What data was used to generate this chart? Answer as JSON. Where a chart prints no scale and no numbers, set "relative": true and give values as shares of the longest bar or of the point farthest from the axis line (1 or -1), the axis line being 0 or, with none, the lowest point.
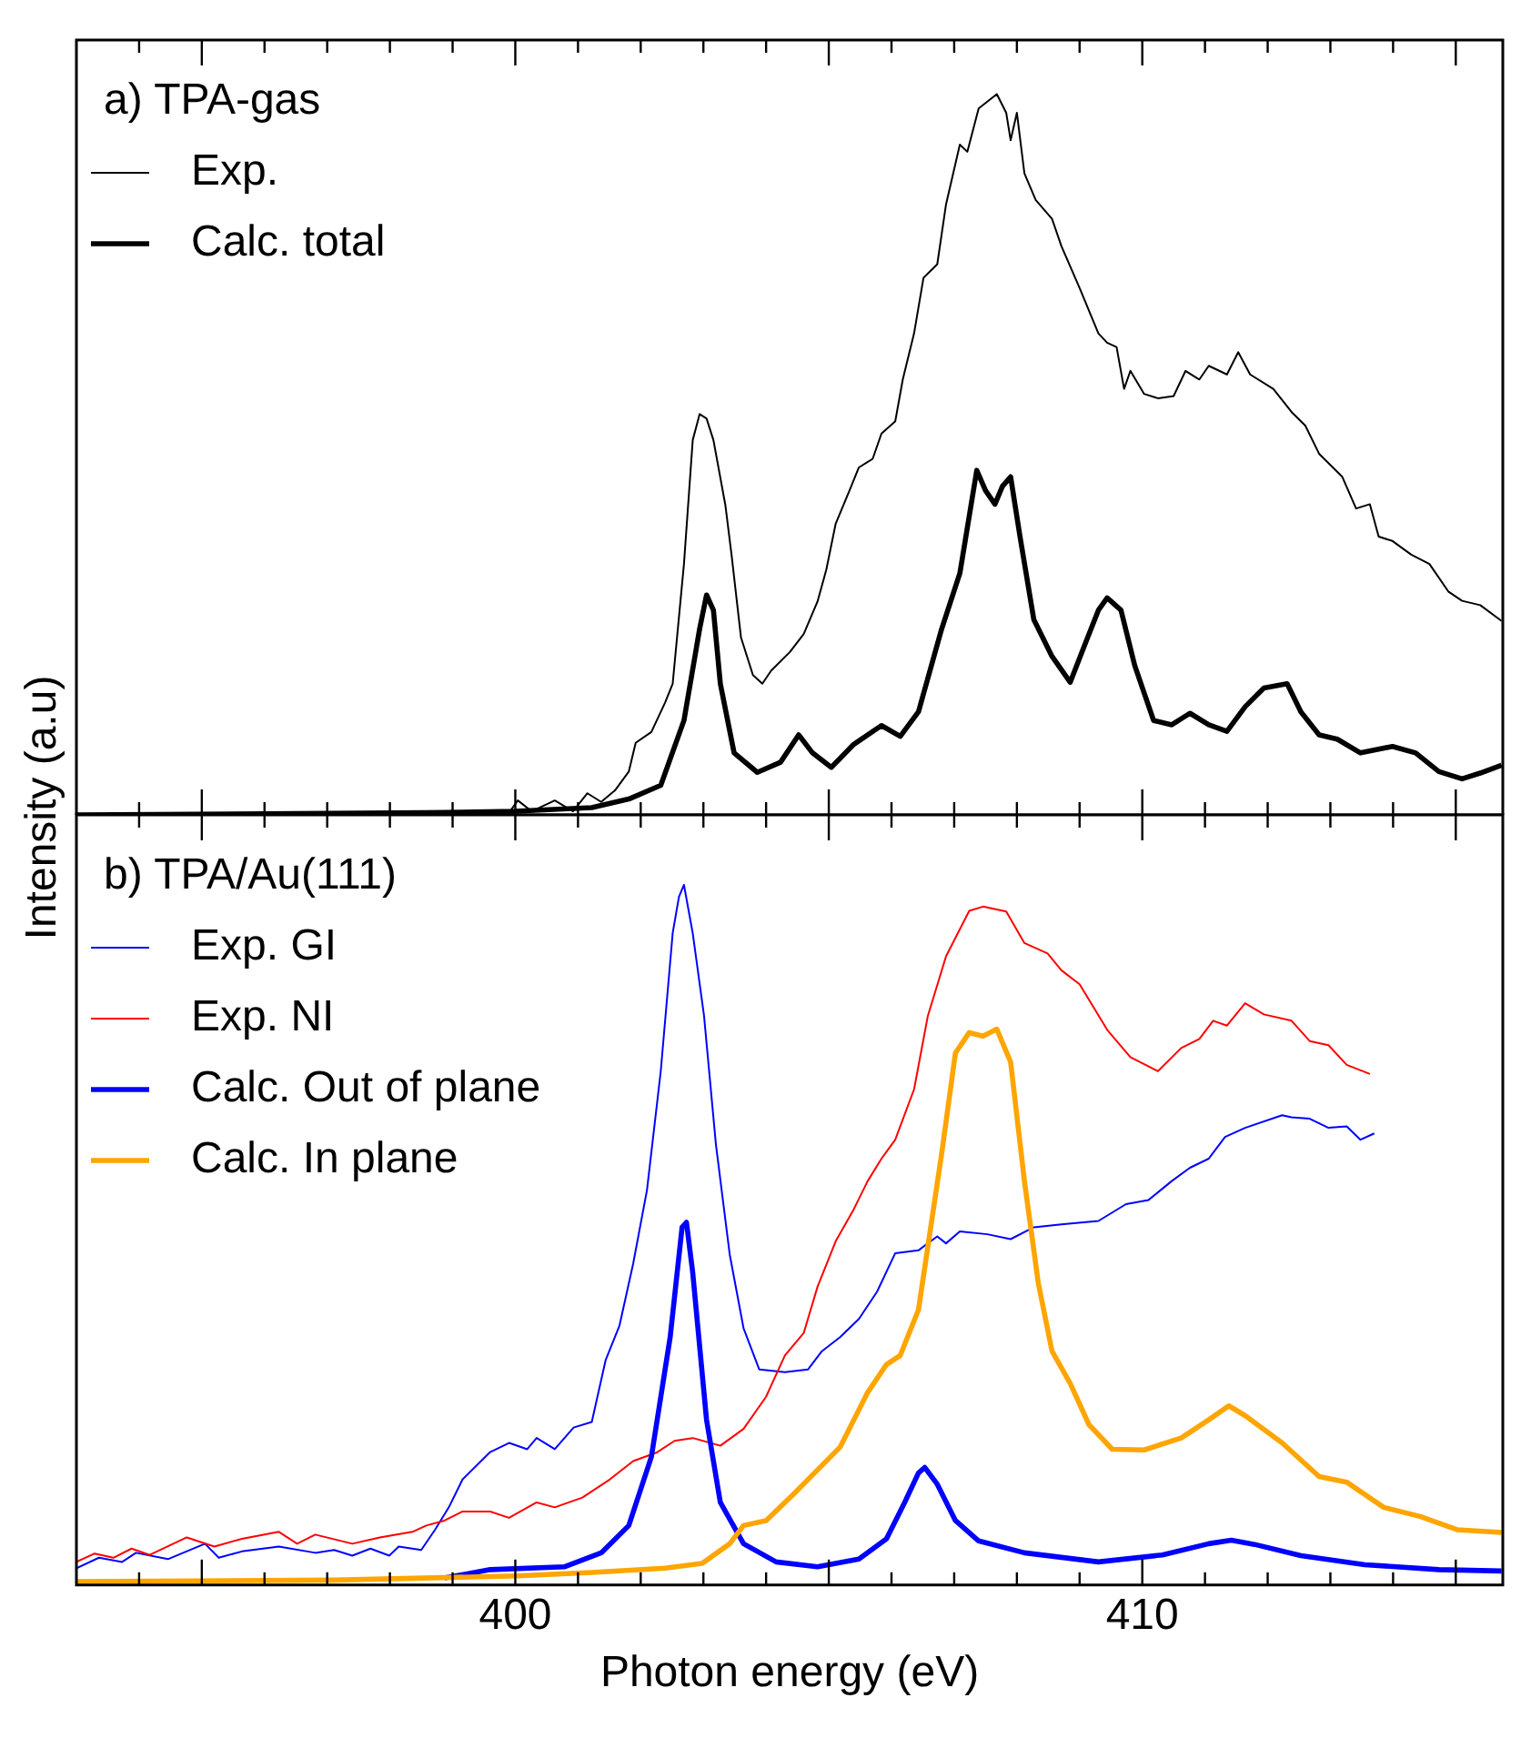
{
  "chart_data": [
    {
      "type": "line",
      "title": "a) TPA-gas",
      "relative": true,
      "legend": "top left",
      "tick_labels": false,
      "xlim": [
        393,
        415.75
      ],
      "xticks": [
        {
          "value": 394,
          "label": null
        },
        {
          "value": 395,
          "label": null
        },
        {
          "value": 396,
          "label": null
        },
        {
          "value": 397,
          "label": null
        },
        {
          "value": 398,
          "label": null
        },
        {
          "value": 399,
          "label": null
        },
        {
          "value": 400,
          "label": null
        },
        {
          "value": 401,
          "label": null
        },
        {
          "value": 402,
          "label": null
        },
        {
          "value": 403,
          "label": null
        },
        {
          "value": 404,
          "label": null
        },
        {
          "value": 405,
          "label": null
        },
        {
          "value": 406,
          "label": null
        },
        {
          "value": 407,
          "label": null
        },
        {
          "value": 408,
          "label": null
        },
        {
          "value": 409,
          "label": null
        },
        {
          "value": 410,
          "label": null
        },
        {
          "value": 411,
          "label": null
        },
        {
          "value": 412,
          "label": null
        },
        {
          "value": 413,
          "label": null
        },
        {
          "value": 414,
          "label": null
        },
        {
          "value": 415,
          "label": null
        }
      ],
      "series": [
        {
          "name": "Exp.",
          "color": "#000000",
          "x": [
            393.0,
            399.9,
            400.04,
            400.26,
            400.63,
            400.92,
            401.15,
            401.37,
            401.59,
            401.81,
            401.92,
            402.17,
            402.39,
            402.51,
            402.69,
            402.83,
            402.94,
            403.05,
            403.16,
            403.35,
            403.45,
            403.6,
            403.79,
            403.94,
            404.08,
            404.38,
            404.6,
            404.82,
            404.96,
            405.11,
            405.33,
            405.48,
            405.7,
            405.84,
            406.06,
            406.18,
            406.36,
            406.51,
            406.73,
            406.87,
            407.09,
            407.21,
            407.39,
            407.68,
            407.83,
            407.9,
            408.0,
            408.12,
            408.3,
            408.56,
            408.71,
            409.0,
            409.3,
            409.44,
            409.59,
            409.71,
            409.81,
            410.03,
            410.25,
            410.5,
            410.69,
            410.91,
            411.06,
            411.35,
            411.53,
            411.72,
            412.09,
            412.38,
            412.6,
            412.82,
            413.19,
            413.41,
            413.63,
            413.77,
            413.99,
            414.29,
            414.58,
            414.88,
            415.1,
            415.39,
            415.73
          ],
          "values": [
            0.0,
            0.003,
            0.02,
            0.005,
            0.02,
            0.005,
            0.03,
            0.018,
            0.034,
            0.06,
            0.1,
            0.115,
            0.156,
            0.182,
            0.348,
            0.52,
            0.556,
            0.55,
            0.52,
            0.43,
            0.36,
            0.246,
            0.194,
            0.182,
            0.2,
            0.226,
            0.251,
            0.296,
            0.34,
            0.404,
            0.45,
            0.482,
            0.494,
            0.529,
            0.546,
            0.604,
            0.668,
            0.745,
            0.764,
            0.847,
            0.93,
            0.92,
            0.98,
            1.0,
            0.974,
            0.936,
            0.974,
            0.89,
            0.853,
            0.827,
            0.789,
            0.731,
            0.668,
            0.655,
            0.649,
            0.591,
            0.616,
            0.584,
            0.578,
            0.581,
            0.616,
            0.604,
            0.623,
            0.611,
            0.642,
            0.611,
            0.591,
            0.559,
            0.54,
            0.501,
            0.469,
            0.425,
            0.431,
            0.386,
            0.38,
            0.361,
            0.348,
            0.31,
            0.297,
            0.291,
            0.269
          ]
        },
        {
          "name": "Calc. total",
          "color": "#000000",
          "x": [
            393.0,
            398.58,
            400.0,
            401.22,
            401.81,
            402.32,
            402.69,
            402.94,
            403.05,
            403.16,
            403.27,
            403.49,
            403.86,
            404.23,
            404.52,
            404.74,
            405.04,
            405.4,
            405.84,
            406.14,
            406.43,
            406.8,
            407.09,
            407.36,
            407.5,
            407.65,
            407.77,
            407.9,
            408.05,
            408.27,
            408.56,
            408.85,
            409.07,
            409.3,
            409.44,
            409.66,
            409.88,
            410.18,
            410.47,
            410.76,
            411.06,
            411.35,
            411.64,
            411.94,
            412.31,
            412.53,
            412.82,
            413.11,
            413.48,
            413.99,
            414.36,
            414.73,
            415.1,
            415.39,
            415.73
          ],
          "values": [
            0.0,
            0.003,
            0.005,
            0.01,
            0.022,
            0.041,
            0.131,
            0.258,
            0.305,
            0.284,
            0.182,
            0.086,
            0.059,
            0.073,
            0.111,
            0.086,
            0.066,
            0.098,
            0.124,
            0.109,
            0.143,
            0.258,
            0.335,
            0.478,
            0.45,
            0.431,
            0.456,
            0.469,
            0.386,
            0.271,
            0.22,
            0.184,
            0.233,
            0.284,
            0.301,
            0.284,
            0.207,
            0.131,
            0.125,
            0.141,
            0.125,
            0.116,
            0.15,
            0.176,
            0.182,
            0.143,
            0.111,
            0.105,
            0.086,
            0.095,
            0.086,
            0.06,
            0.05,
            0.058,
            0.069
          ]
        }
      ]
    },
    {
      "type": "line",
      "title": "b) TPA/Au(111)",
      "relative": true,
      "legend": "top left",
      "tick_labels": "x",
      "xlabel": "Photon energy (eV)",
      "ylabel": "Intensity (a.u)",
      "xlim": [
        393,
        415.75
      ],
      "xticks": [
        {
          "value": 394,
          "label": null
        },
        {
          "value": 395,
          "label": null
        },
        {
          "value": 396,
          "label": null
        },
        {
          "value": 397,
          "label": null
        },
        {
          "value": 398,
          "label": null
        },
        {
          "value": 399,
          "label": null
        },
        400,
        {
          "value": 401,
          "label": null
        },
        {
          "value": 402,
          "label": null
        },
        {
          "value": 403,
          "label": null
        },
        {
          "value": 404,
          "label": null
        },
        {
          "value": 405,
          "label": null
        },
        {
          "value": 406,
          "label": null
        },
        {
          "value": 407,
          "label": null
        },
        {
          "value": 408,
          "label": null
        },
        {
          "value": 409,
          "label": null
        },
        410,
        {
          "value": 411,
          "label": null
        },
        {
          "value": 412,
          "label": null
        },
        {
          "value": 413,
          "label": null
        },
        {
          "value": 414,
          "label": null
        },
        {
          "value": 415,
          "label": null
        }
      ],
      "series": [
        {
          "name": "Exp. GI",
          "color": "#0000ff",
          "x": [
            393.0,
            393.36,
            393.73,
            393.95,
            394.46,
            395.05,
            395.27,
            395.64,
            396.23,
            396.81,
            397.11,
            397.4,
            397.69,
            397.99,
            398.14,
            398.5,
            398.72,
            398.94,
            399.16,
            399.6,
            399.9,
            400.19,
            400.34,
            400.63,
            400.93,
            401.22,
            401.44,
            401.66,
            401.88,
            402.1,
            402.32,
            402.51,
            402.61,
            402.69,
            402.83,
            403.01,
            403.2,
            403.42,
            403.64,
            403.89,
            404.3,
            404.67,
            404.89,
            405.18,
            405.48,
            405.77,
            406.06,
            406.43,
            406.73,
            406.87,
            407.09,
            407.53,
            407.9,
            408.27,
            408.71,
            409.3,
            409.74,
            410.1,
            410.47,
            410.76,
            411.06,
            411.32,
            411.64,
            412.23,
            412.38,
            412.67,
            412.97,
            413.26,
            413.48,
            413.7
          ],
          "values": [
            0.024,
            0.039,
            0.033,
            0.046,
            0.037,
            0.059,
            0.039,
            0.048,
            0.055,
            0.046,
            0.05,
            0.042,
            0.052,
            0.042,
            0.055,
            0.05,
            0.079,
            0.111,
            0.151,
            0.19,
            0.203,
            0.194,
            0.21,
            0.194,
            0.225,
            0.233,
            0.321,
            0.37,
            0.459,
            0.564,
            0.734,
            0.931,
            0.983,
            1.0,
            0.931,
            0.813,
            0.629,
            0.472,
            0.367,
            0.308,
            0.304,
            0.308,
            0.334,
            0.354,
            0.38,
            0.419,
            0.474,
            0.478,
            0.498,
            0.488,
            0.505,
            0.501,
            0.494,
            0.511,
            0.515,
            0.52,
            0.544,
            0.55,
            0.577,
            0.596,
            0.609,
            0.64,
            0.653,
            0.671,
            0.668,
            0.666,
            0.653,
            0.655,
            0.636,
            0.645
          ]
        },
        {
          "name": "Exp. NI",
          "color": "#ff0000",
          "x": [
            393.0,
            393.29,
            393.59,
            393.88,
            394.17,
            394.76,
            395.2,
            395.64,
            396.23,
            396.52,
            396.81,
            397.4,
            397.84,
            398.36,
            398.58,
            398.87,
            399.16,
            399.6,
            399.9,
            400.34,
            400.63,
            401.07,
            401.51,
            401.88,
            402.25,
            402.54,
            402.83,
            403.27,
            403.64,
            404.0,
            404.3,
            404.6,
            404.82,
            405.11,
            405.4,
            405.62,
            405.84,
            406.06,
            406.36,
            406.58,
            406.87,
            407.24,
            407.46,
            407.83,
            408.12,
            408.49,
            408.71,
            409.0,
            409.44,
            409.81,
            410.25,
            410.62,
            410.91,
            411.13,
            411.35,
            411.64,
            411.94,
            412.38,
            412.67,
            412.97,
            413.26,
            413.63
          ],
          "values": [
            0.033,
            0.045,
            0.039,
            0.052,
            0.043,
            0.068,
            0.055,
            0.066,
            0.076,
            0.059,
            0.072,
            0.059,
            0.068,
            0.076,
            0.085,
            0.092,
            0.105,
            0.105,
            0.096,
            0.118,
            0.111,
            0.125,
            0.151,
            0.177,
            0.189,
            0.206,
            0.21,
            0.199,
            0.223,
            0.269,
            0.328,
            0.36,
            0.426,
            0.491,
            0.537,
            0.577,
            0.609,
            0.636,
            0.708,
            0.813,
            0.898,
            0.963,
            0.969,
            0.962,
            0.917,
            0.902,
            0.878,
            0.858,
            0.793,
            0.754,
            0.734,
            0.767,
            0.78,
            0.806,
            0.799,
            0.831,
            0.815,
            0.806,
            0.777,
            0.771,
            0.743,
            0.73
          ]
        },
        {
          "name": "Calc. Out of plane",
          "color": "#0000ff",
          "x": [
            398.87,
            399.6,
            400.78,
            401.37,
            401.81,
            402.17,
            402.47,
            402.66,
            402.73,
            402.83,
            403.05,
            403.27,
            403.64,
            404.16,
            404.82,
            405.48,
            405.92,
            406.21,
            406.43,
            406.53,
            406.73,
            407.02,
            407.39,
            408.12,
            409.3,
            410.32,
            411.06,
            411.42,
            411.79,
            412.53,
            413.55,
            414.73,
            415.73
          ],
          "values": [
            0.01,
            0.022,
            0.026,
            0.046,
            0.085,
            0.183,
            0.354,
            0.511,
            0.518,
            0.446,
            0.236,
            0.118,
            0.059,
            0.033,
            0.026,
            0.037,
            0.066,
            0.118,
            0.16,
            0.168,
            0.144,
            0.092,
            0.063,
            0.046,
            0.033,
            0.043,
            0.059,
            0.064,
            0.058,
            0.042,
            0.029,
            0.022,
            0.02
          ]
        },
        {
          "name": "Calc. In plane",
          "color": "#ffa500",
          "x": [
            393.0,
            397.11,
            400.04,
            401.22,
            402.39,
            402.98,
            403.42,
            403.64,
            404.0,
            404.45,
            405.18,
            405.62,
            405.92,
            406.14,
            406.43,
            406.8,
            407.02,
            407.24,
            407.46,
            407.68,
            407.9,
            408.12,
            408.34,
            408.56,
            408.85,
            409.15,
            409.52,
            410.03,
            410.62,
            411.06,
            411.38,
            411.64,
            412.23,
            412.82,
            413.26,
            413.85,
            414.43,
            415.02,
            415.73
          ],
          "values": [
            0.005,
            0.007,
            0.013,
            0.018,
            0.024,
            0.031,
            0.059,
            0.085,
            0.092,
            0.131,
            0.197,
            0.275,
            0.315,
            0.328,
            0.393,
            0.616,
            0.76,
            0.789,
            0.784,
            0.794,
            0.747,
            0.577,
            0.432,
            0.334,
            0.288,
            0.229,
            0.194,
            0.193,
            0.21,
            0.236,
            0.256,
            0.242,
            0.203,
            0.155,
            0.147,
            0.111,
            0.098,
            0.079,
            0.075
          ]
        }
      ]
    }
  ]
}
